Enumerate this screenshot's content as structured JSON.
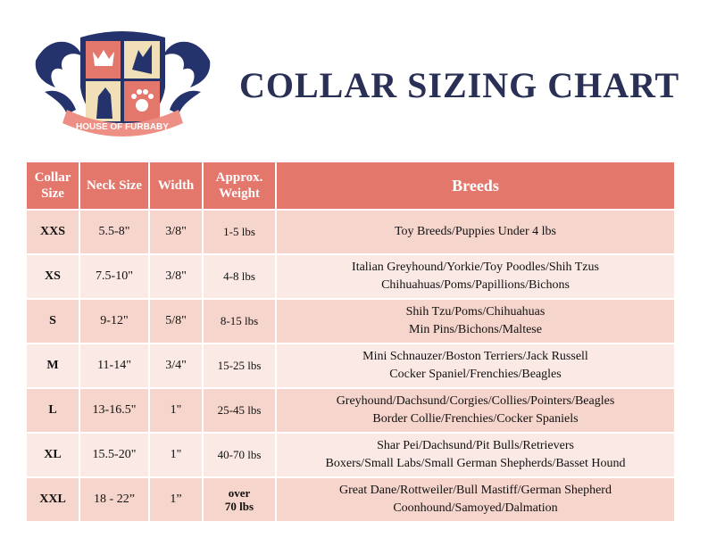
{
  "logo": {
    "text": "HOUSE OF FURBABY",
    "colors": {
      "navy": "#24336b",
      "coral": "#e4776c",
      "cream": "#f1dfb8"
    }
  },
  "title": "COLLAR SIZING CHART",
  "table": {
    "headers": [
      "Collar Size",
      "Neck Size",
      "Width",
      "Approx. Weight",
      "Breeds"
    ],
    "rows": [
      {
        "size": "XXS",
        "neck": "5.5-8\"",
        "width": "3/8\"",
        "weight": "1-5 lbs",
        "breeds": [
          "Toy Breeds/Puppies Under 4 lbs"
        ]
      },
      {
        "size": "XS",
        "neck": "7.5-10\"",
        "width": "3/8\"",
        "weight": "4-8 lbs",
        "breeds": [
          "Italian Greyhound/Yorkie/Toy Poodles/Shih Tzus",
          "Chihuahuas/Poms/Papillions/Bichons"
        ]
      },
      {
        "size": "S",
        "neck": "9-12\"",
        "width": "5/8\"",
        "weight": "8-15 lbs",
        "breeds": [
          "Shih Tzu/Poms/Chihuahuas",
          "Min Pins/Bichons/Maltese"
        ]
      },
      {
        "size": "M",
        "neck": "11-14\"",
        "width": "3/4\"",
        "weight": "15-25 lbs",
        "breeds": [
          "Mini Schnauzer/Boston Terriers/Jack Russell",
          "Cocker Spaniel/Frenchies/Beagles"
        ]
      },
      {
        "size": "L",
        "neck": "13-16.5\"",
        "width": "1\"",
        "weight": "25-45 lbs",
        "breeds": [
          "Greyhound/Dachsund/Corgies/Collies/Pointers/Beagles",
          "Border Collie/Frenchies/Cocker Spaniels"
        ]
      },
      {
        "size": "XL",
        "neck": "15.5-20\"",
        "width": "1\"",
        "weight": "40-70 lbs",
        "breeds": [
          "Shar Pei/Dachsund/Pit Bulls/Retrievers",
          "Boxers/Small Labs/Small German Shepherds/Basset Hound"
        ]
      },
      {
        "size": "XXL",
        "neck": "18 - 22”",
        "width": "1”",
        "weight": "over 70 lbs",
        "breeds": [
          "Great Dane/Rottweiler/Bull Mastiff/German Shepherd",
          "Coonhound/Samoyed/Dalmation"
        ]
      }
    ]
  },
  "colors": {
    "header": "#e4776c",
    "row_odd": "#f6d5cc",
    "row_even": "#fae9e4",
    "title": "#2a2f55"
  }
}
